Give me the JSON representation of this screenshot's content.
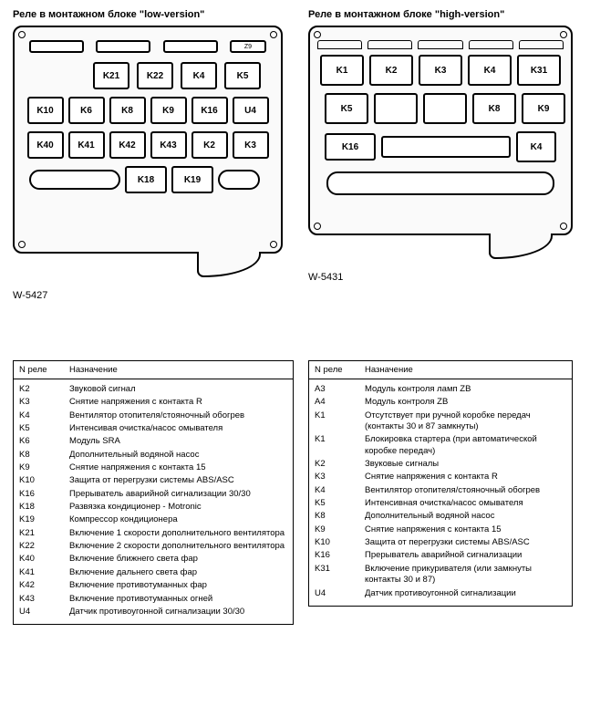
{
  "left": {
    "title": "Реле в монтажном блоке \"low-version\"",
    "figure": "W-5427",
    "small_label": "Z9",
    "relays": {
      "row1": [
        "K21",
        "K22",
        "K4",
        "K5"
      ],
      "row2": [
        "K10",
        "K6",
        "K8",
        "K9",
        "K16",
        "U4"
      ],
      "row3": [
        "K40",
        "K41",
        "K42",
        "K43",
        "K2",
        "K3"
      ],
      "row4": [
        "K18",
        "K19"
      ]
    },
    "table": {
      "col1_header": "N реле",
      "col2_header": "Назначение",
      "rows": [
        {
          "n": "K2",
          "d": "Звуковой сигнал"
        },
        {
          "n": "K3",
          "d": "Снятие напряжения с контакта R"
        },
        {
          "n": "K4",
          "d": "Вентилятор отопителя/стояночный обогрев"
        },
        {
          "n": "K5",
          "d": "Интенсивая очистка/насос омывателя"
        },
        {
          "n": "K6",
          "d": "Модуль SRA"
        },
        {
          "n": "K8",
          "d": "Дополнительный водяной насос"
        },
        {
          "n": "K9",
          "d": "Снятие напряжения с контакта 15"
        },
        {
          "n": "K10",
          "d": "Защита от перегрузки системы ABS/ASC"
        },
        {
          "n": "K16",
          "d": "Прерыватель аварийной сигнализации 30/30"
        },
        {
          "n": "K18",
          "d": "Развязка кондиционер - Motronic"
        },
        {
          "n": "K19",
          "d": "Компрессор кондиционера"
        },
        {
          "n": "K21",
          "d": "Включение 1 скорости дополнительного вентилятора"
        },
        {
          "n": "K22",
          "d": "Включение 2 скорости дополнительного вентилятора"
        },
        {
          "n": "K40",
          "d": "Включение ближнего света фар"
        },
        {
          "n": "K41",
          "d": "Включение дальнего света фар"
        },
        {
          "n": "K42",
          "d": "Включение противотуманных фар"
        },
        {
          "n": "K43",
          "d": "Включение противотуманных огней"
        },
        {
          "n": "U4",
          "d": "Датчик противоугонной сигнализации 30/30"
        }
      ]
    }
  },
  "right": {
    "title": "Реле в монтажном блоке \"high-version\"",
    "figure": "W-5431",
    "relays": {
      "row1": [
        "K1",
        "K2",
        "K3",
        "K4",
        "K31"
      ],
      "row2": [
        "K5",
        "K8",
        "K9"
      ],
      "row3_left": "K16",
      "row3_right": "K4"
    },
    "table": {
      "col1_header": "N реле",
      "col2_header": "Назначение",
      "rows": [
        {
          "n": "A3",
          "d": "Модуль контроля ламп ZB"
        },
        {
          "n": "A4",
          "d": "Модуль контроля ZB"
        },
        {
          "n": "K1",
          "d": "Отсутствует при ручной коробке передач (контакты 30 и 87 замкнуты)"
        },
        {
          "n": "K1",
          "d": "Блокировка стартера (при автоматической коробке передач)"
        },
        {
          "n": "K2",
          "d": "Звуковые сигналы"
        },
        {
          "n": "K3",
          "d": "Снятие напряжения с контакта R"
        },
        {
          "n": "K4",
          "d": "Вентилятор отопителя/стояночный обогрев"
        },
        {
          "n": "K5",
          "d": "Интенсивная очистка/насос омывателя"
        },
        {
          "n": "K8",
          "d": "Дополнительный водяной насос"
        },
        {
          "n": "K9",
          "d": "Снятие напряжения с контакта 15"
        },
        {
          "n": "K10",
          "d": "Защита от перегрузки системы ABS/ASC"
        },
        {
          "n": "K16",
          "d": "Прерыватель аварийной сигнализации"
        },
        {
          "n": "K31",
          "d": "Включение прикуривателя (или замкнуты контакты 30 и 87)"
        },
        {
          "n": "U4",
          "d": "Датчик противоугонной сигнализации"
        }
      ]
    }
  },
  "colors": {
    "bg": "#ffffff",
    "line": "#000000",
    "box_bg": "#fafafa"
  }
}
